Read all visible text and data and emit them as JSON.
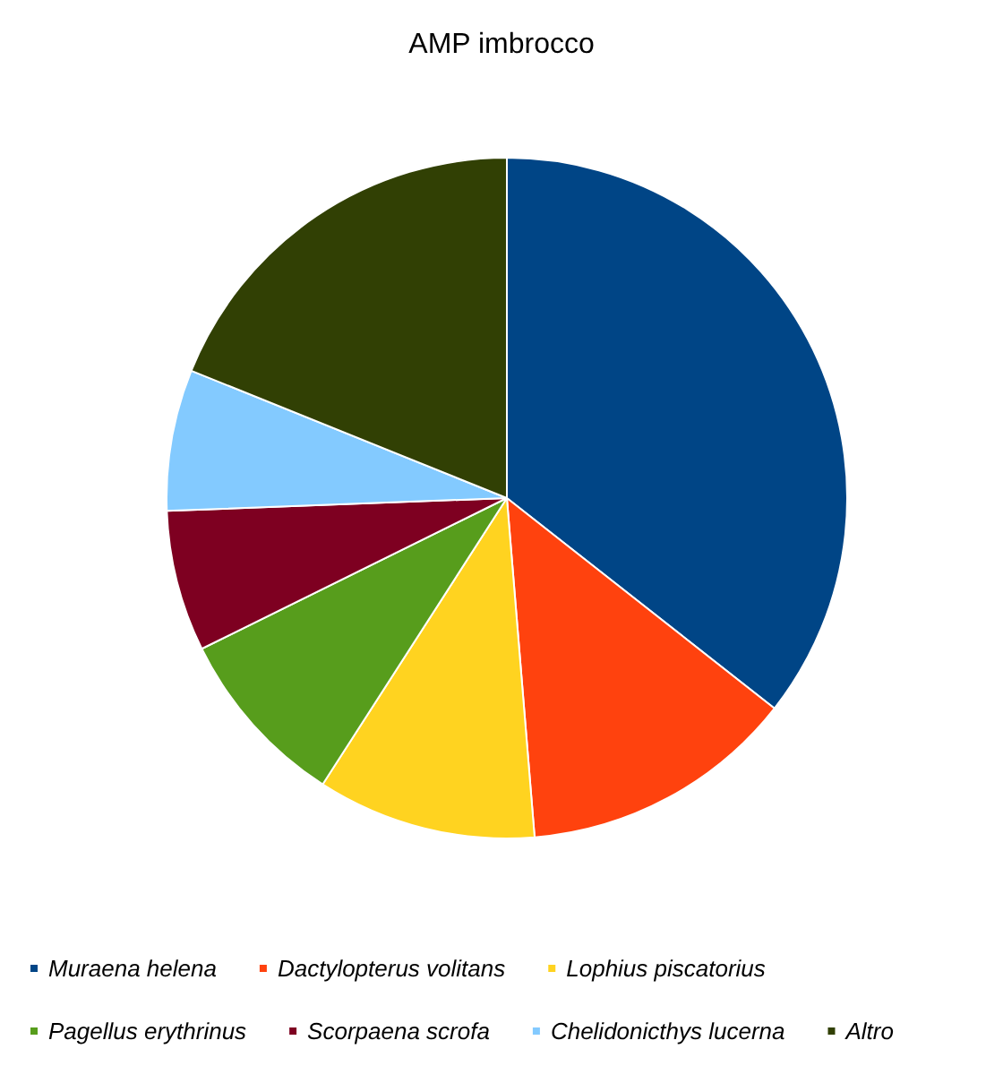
{
  "chart_data": {
    "type": "pie",
    "title": "AMP imbrocco",
    "categories": [
      "Muraena helena",
      "Dactylopterus volitans",
      "Lophius piscatorius",
      "Pagellus erythrinus",
      "Scorpaena scrofa",
      "Chelidonicthys lucerna",
      "Altro"
    ],
    "values": [
      35.6,
      13.1,
      10.4,
      8.6,
      6.7,
      6.7,
      18.9
    ],
    "colors": [
      "#004586",
      "#ff420e",
      "#ffd320",
      "#579d1c",
      "#7e0021",
      "#83caff",
      "#314004"
    ],
    "legend": "bottom"
  }
}
